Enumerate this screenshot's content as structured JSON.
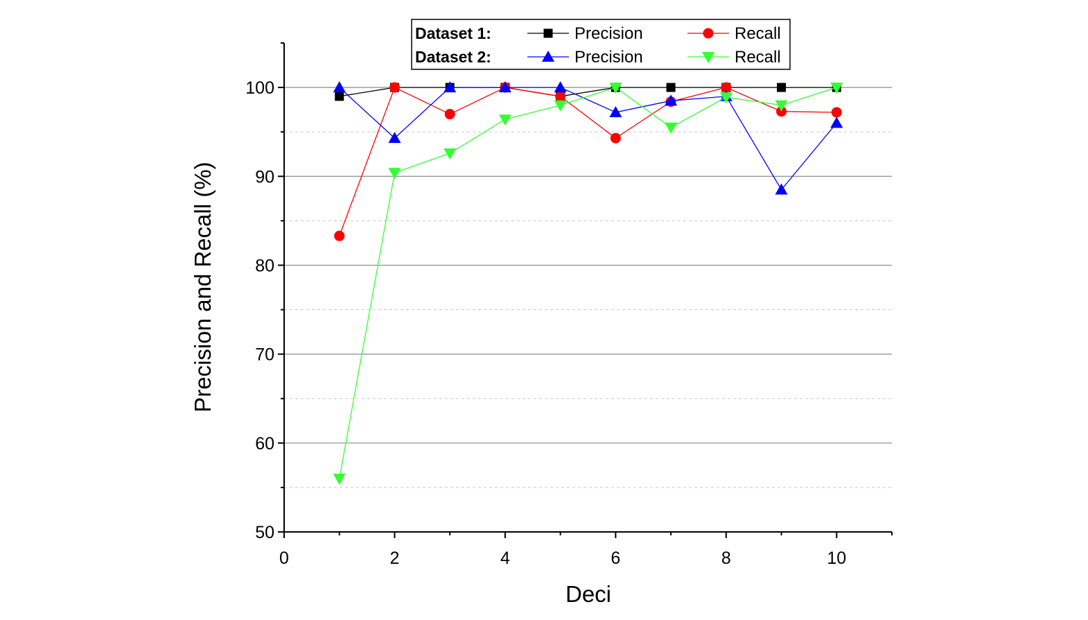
{
  "chart_data": {
    "type": "line",
    "title": "",
    "xlabel": "Deci",
    "ylabel": "Precision and Recall (%)",
    "xlim": [
      0,
      11
    ],
    "ylim": [
      50,
      105
    ],
    "xticks": [
      "0",
      "2",
      "4",
      "6",
      "8",
      "10"
    ],
    "xtick_values": [
      0,
      2,
      4,
      6,
      8,
      10
    ],
    "yticks": [
      "50",
      "60",
      "70",
      "80",
      "90",
      "100"
    ],
    "ytick_values": [
      50,
      60,
      70,
      80,
      90,
      100
    ],
    "grid": "horizontal major solid, minor dashed",
    "legend_position": "top",
    "legend_groups": [
      "Dataset 1:",
      "Dataset 2:"
    ],
    "x": [
      1,
      2,
      3,
      4,
      5,
      6,
      7,
      8,
      9,
      10
    ],
    "series": [
      {
        "name": "Precision",
        "group": "Dataset 1:",
        "marker": "square",
        "color": "#000000",
        "values": [
          99,
          100,
          100,
          100,
          99,
          100,
          100,
          100,
          100,
          100
        ]
      },
      {
        "name": "Recall",
        "group": "Dataset 1:",
        "marker": "circle",
        "color": "#ff0000",
        "values": [
          83.3,
          100,
          97,
          100,
          99,
          94.3,
          98.4,
          100,
          97.3,
          97.2
        ]
      },
      {
        "name": "Precision",
        "group": "Dataset 2:",
        "marker": "triangle-up",
        "color": "#0000ff",
        "values": [
          100,
          94.3,
          100,
          100,
          100,
          97.2,
          98.5,
          99,
          88.5,
          96
        ]
      },
      {
        "name": "Recall",
        "group": "Dataset 2:",
        "marker": "triangle-down",
        "color": "#33ff33",
        "values": [
          56,
          90.4,
          92.6,
          96.4,
          98,
          100,
          95.5,
          98.9,
          98,
          100
        ]
      }
    ]
  }
}
